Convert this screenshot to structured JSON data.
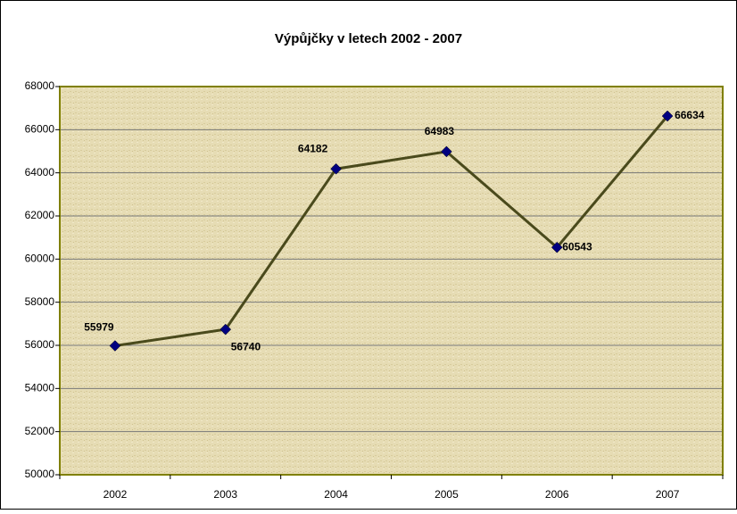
{
  "chart_data": {
    "type": "line",
    "title": "Výpůjčky v letech 2002 - 2007",
    "categories": [
      "2002",
      "2003",
      "2004",
      "2005",
      "2006",
      "2007"
    ],
    "values": [
      55979,
      56740,
      64182,
      64983,
      60543,
      66634
    ],
    "color": "#4a4a1c",
    "marker_color": "#000080",
    "ylim": [
      50000,
      68000
    ],
    "yticks": [
      50000,
      52000,
      54000,
      56000,
      58000,
      60000,
      62000,
      64000,
      66000,
      68000
    ],
    "grid": true
  }
}
